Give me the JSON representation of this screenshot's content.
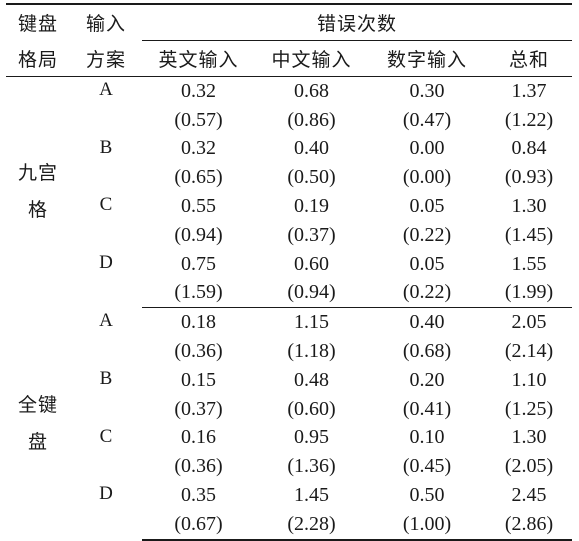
{
  "header": {
    "layout_label": [
      "键盘",
      "格局"
    ],
    "plan_label": [
      "输入",
      "方案"
    ],
    "errors_label": "错误次数",
    "columns": [
      "英文输入",
      "中文输入",
      "数字输入",
      "总和"
    ]
  },
  "groups": [
    {
      "layout": [
        "九宫",
        "格"
      ],
      "rows": [
        {
          "plan": "A",
          "means": [
            "0.32",
            "0.68",
            "0.30",
            "1.37"
          ],
          "sds": [
            "(0.57)",
            "(0.86)",
            "(0.47)",
            "(1.22)"
          ]
        },
        {
          "plan": "B",
          "means": [
            "0.32",
            "0.40",
            "0.00",
            "0.84"
          ],
          "sds": [
            "(0.65)",
            "(0.50)",
            "(0.00)",
            "(0.93)"
          ]
        },
        {
          "plan": "C",
          "means": [
            "0.55",
            "0.19",
            "0.05",
            "1.30"
          ],
          "sds": [
            "(0.94)",
            "(0.37)",
            "(0.22)",
            "(1.45)"
          ]
        },
        {
          "plan": "D",
          "means": [
            "0.75",
            "0.60",
            "0.05",
            "1.55"
          ],
          "sds": [
            "(1.59)",
            "(0.94)",
            "(0.22)",
            "(1.99)"
          ]
        }
      ]
    },
    {
      "layout": [
        "全键",
        "盘"
      ],
      "rows": [
        {
          "plan": "A",
          "means": [
            "0.18",
            "1.15",
            "0.40",
            "2.05"
          ],
          "sds": [
            "(0.36)",
            "(1.18)",
            "(0.68)",
            "(2.14)"
          ]
        },
        {
          "plan": "B",
          "means": [
            "0.15",
            "0.48",
            "0.20",
            "1.10"
          ],
          "sds": [
            "(0.37)",
            "(0.60)",
            "(0.41)",
            "(1.25)"
          ]
        },
        {
          "plan": "C",
          "means": [
            "0.16",
            "0.95",
            "0.10",
            "1.30"
          ],
          "sds": [
            "(0.36)",
            "(1.36)",
            "(0.45)",
            "(2.05)"
          ]
        },
        {
          "plan": "D",
          "means": [
            "0.35",
            "1.45",
            "0.50",
            "2.45"
          ],
          "sds": [
            "(0.67)",
            "(2.28)",
            "(1.00)",
            "(2.86)"
          ]
        }
      ]
    }
  ]
}
